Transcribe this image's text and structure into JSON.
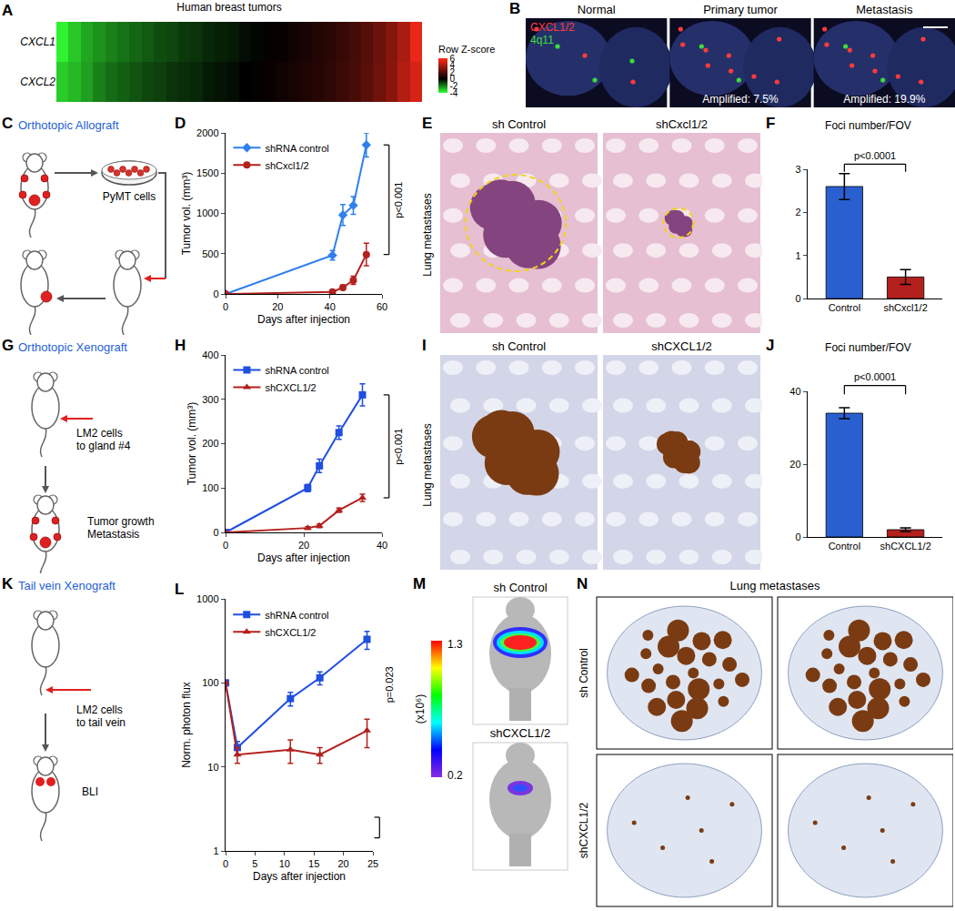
{
  "chart_data": [
    {
      "panel": "A",
      "type": "heatmap",
      "title": "Human breast tumors",
      "rows": [
        "CXCL1",
        "CXCL2"
      ],
      "cells": [
        [
          -3.8,
          -3.1,
          -2.6,
          -2.3,
          -2.0,
          -1.8,
          -1.6,
          -1.4,
          -1.2,
          -1.1,
          -0.9,
          -0.8,
          -0.6,
          -0.5,
          -0.4,
          -0.2,
          -0.1,
          0.1,
          0.2,
          0.4,
          0.6,
          0.8,
          1.0,
          1.3,
          1.6,
          2.0,
          2.5,
          3.1,
          4.0,
          5.5
        ],
        [
          -3.2,
          -2.9,
          -2.5,
          -2.0,
          -1.7,
          -1.5,
          -1.3,
          -1.1,
          -1.0,
          -0.8,
          -0.7,
          -0.6,
          -0.4,
          -0.3,
          -0.2,
          0.0,
          0.1,
          0.2,
          0.4,
          0.5,
          0.7,
          0.9,
          1.1,
          1.4,
          1.7,
          2.1,
          2.6,
          3.2,
          4.2,
          5.0
        ]
      ],
      "colorbar_title": "Row Z-score",
      "colorbar_range": [
        -4,
        6
      ],
      "colorbar_ticks": [
        -4,
        -2,
        0,
        2,
        4,
        6
      ],
      "colors": [
        "#33ff33",
        "#000000",
        "#ff2a1a"
      ],
      "tick_labels": "y"
    },
    {
      "panel": "D",
      "type": "line",
      "x": [
        0,
        41,
        45,
        49,
        54
      ],
      "xlim": [
        0,
        60
      ],
      "xticks": [
        0,
        20,
        40,
        60
      ],
      "ylim": [
        0,
        2000
      ],
      "yticks": [
        0,
        500,
        1000,
        1500,
        2000
      ],
      "x_label": "Days after injection",
      "y_label": "Tumor vol. (mm³)",
      "legend": "upper left",
      "grid": false,
      "series": [
        {
          "name": "shRNA control",
          "color": "#2f80ed",
          "marker": "diamond",
          "values": [
            0,
            480,
            980,
            1100,
            1850
          ],
          "errors": [
            0,
            60,
            130,
            110,
            150
          ]
        },
        {
          "name": "shCxcl1/2",
          "color": "#b3201d",
          "marker": "circle",
          "values": [
            0,
            25,
            80,
            170,
            490
          ],
          "errors": [
            0,
            15,
            30,
            50,
            140
          ]
        }
      ],
      "annotations": [
        {
          "text": "p<0.001"
        }
      ]
    },
    {
      "panel": "F",
      "type": "bar",
      "title": "Foci number/FOV",
      "categories": [
        "Control",
        "shCxcl1/2"
      ],
      "values": [
        2.6,
        0.5
      ],
      "errors": [
        0.3,
        0.17
      ],
      "colors": [
        "#2a5fd0",
        "#b3201d"
      ],
      "ylim": [
        0,
        3
      ],
      "yticks": [
        0,
        1,
        2,
        3
      ],
      "grid": false,
      "annotations": [
        {
          "text": "p<0.0001"
        }
      ]
    },
    {
      "panel": "H",
      "type": "line",
      "x": [
        0,
        21,
        24,
        29,
        35
      ],
      "xlim": [
        0,
        40
      ],
      "xticks": [
        0,
        20,
        40
      ],
      "ylim": [
        0,
        400
      ],
      "yticks": [
        0,
        100,
        200,
        300,
        400
      ],
      "x_label": "Days after injection",
      "y_label": "Tumor vol. (mm³)",
      "legend": "upper left",
      "grid": false,
      "series": [
        {
          "name": "shRNA control",
          "color": "#1f4fe0",
          "marker": "square",
          "values": [
            0,
            100,
            150,
            225,
            310
          ],
          "errors": [
            0,
            8,
            15,
            15,
            25
          ]
        },
        {
          "name": "shCXCL1/2",
          "color": "#b3201d",
          "marker": "triangle-up",
          "values": [
            0,
            10,
            15,
            50,
            78
          ],
          "errors": [
            0,
            3,
            4,
            5,
            8
          ]
        }
      ],
      "annotations": [
        {
          "text": "p<0.001"
        }
      ]
    },
    {
      "panel": "J",
      "type": "bar",
      "title": "Foci number/FOV",
      "categories": [
        "Control",
        "shCXCL1/2"
      ],
      "values": [
        34,
        2
      ],
      "errors": [
        1.5,
        0.5
      ],
      "colors": [
        "#2a5fd0",
        "#b3201d"
      ],
      "ylim": [
        0,
        40
      ],
      "yticks": [
        0,
        20,
        40
      ],
      "grid": false,
      "annotations": [
        {
          "text": "p<0.0001"
        }
      ]
    },
    {
      "panel": "L",
      "type": "line",
      "log": "y",
      "x": [
        0,
        2,
        11,
        16,
        24
      ],
      "xlim": [
        0,
        25
      ],
      "xticks": [
        0,
        5,
        10,
        15,
        20,
        25
      ],
      "ylim": [
        1,
        1000
      ],
      "yticks": [
        1,
        10,
        100,
        1000
      ],
      "x_label": "Days after injection",
      "y_label": "Norm. photon flux",
      "legend": "upper left",
      "grid": false,
      "series": [
        {
          "name": "shRNA control",
          "color": "#1f4fe0",
          "marker": "square",
          "values": [
            100,
            17,
            65,
            115,
            330
          ],
          "errors": [
            0,
            3,
            12,
            20,
            80
          ]
        },
        {
          "name": "shCXCL1/2",
          "color": "#b3201d",
          "marker": "triangle-up",
          "values": [
            100,
            14,
            16,
            14,
            27
          ],
          "errors": [
            0,
            3,
            5,
            3,
            10
          ]
        }
      ],
      "annotations": [
        {
          "text": "p=0.023"
        }
      ]
    }
  ],
  "figure": {
    "B": {
      "panel": "B",
      "images": [
        {
          "title": "Normal"
        },
        {
          "title": "Primary tumor",
          "note": "Amplified: 7.5%"
        },
        {
          "title": "Metastasis",
          "note": "Amplified: 19.9%"
        }
      ],
      "legend": [
        {
          "text": "CXCL1/2",
          "color": "#ff3b3b"
        },
        {
          "text": "4q11",
          "color": "#3bdc3b"
        }
      ]
    },
    "C": {
      "panel": "C",
      "title": "Orthotopic Allograft",
      "labels": [
        [
          "PyMT cells"
        ]
      ]
    },
    "E": {
      "panel": "E",
      "side_label": "Lung metastases",
      "images": [
        "sh Control",
        "shCxcl1/2"
      ]
    },
    "G": {
      "panel": "G",
      "title": "Orthotopic Xenograft",
      "labels": [
        [
          "LM2 cells",
          "to gland #4"
        ],
        [
          "Tumor growth",
          "Metastasis"
        ]
      ]
    },
    "I": {
      "panel": "I",
      "side_label": "Lung metastases",
      "images": [
        "sh Control",
        "shCXCL1/2"
      ]
    },
    "K": {
      "panel": "K",
      "title": "Tail vein Xenograft",
      "labels": [
        [
          "LM2 cells",
          "to tail vein"
        ],
        [
          "BLI"
        ]
      ]
    },
    "M": {
      "panel": "M",
      "images": [
        "sh Control",
        "shCXCL1/2"
      ],
      "scale": {
        "label": "(x10⁶)",
        "max": 1.3,
        "min": 0.2
      }
    },
    "N": {
      "panel": "N",
      "title": "Lung metastases",
      "rows": [
        "sh Control",
        "shCXCL1/2"
      ]
    }
  }
}
